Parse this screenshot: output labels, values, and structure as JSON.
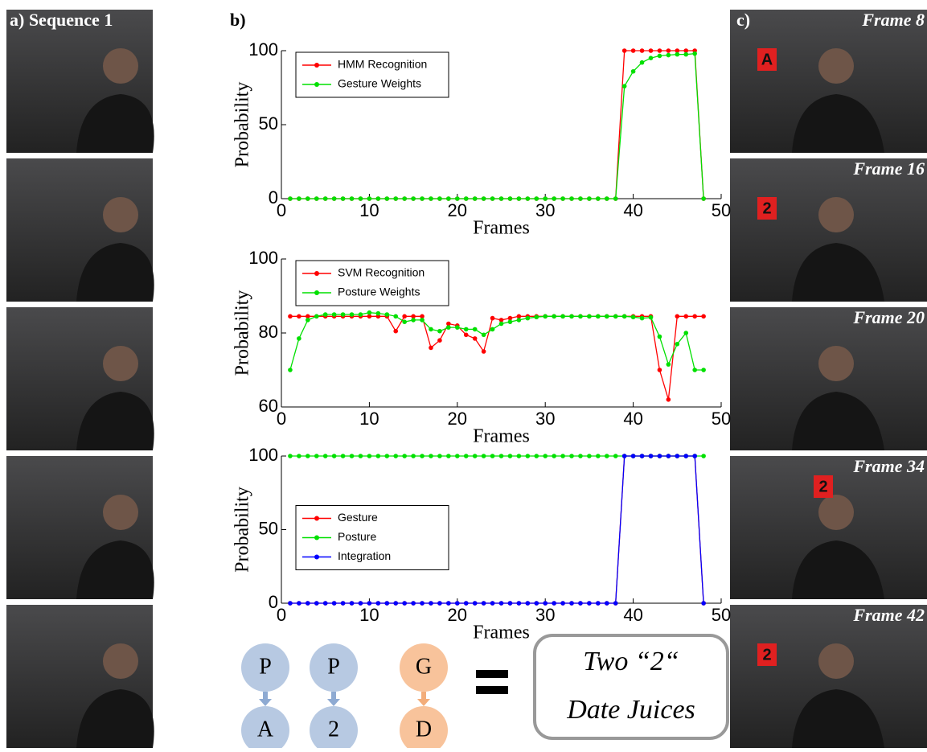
{
  "panel_a": {
    "label": "a) Sequence 1"
  },
  "panel_b": {
    "label": "b)"
  },
  "chart_data": [
    {
      "type": "line",
      "ylabel": "Probability",
      "xlabel": "Frames",
      "legend": "upper left",
      "x": [
        1,
        2,
        3,
        4,
        5,
        6,
        7,
        8,
        9,
        10,
        11,
        12,
        13,
        14,
        15,
        16,
        17,
        18,
        19,
        20,
        21,
        22,
        23,
        24,
        25,
        26,
        27,
        28,
        29,
        30,
        31,
        32,
        33,
        34,
        35,
        36,
        37,
        38,
        39,
        40,
        41,
        42,
        43,
        44,
        45,
        46,
        47,
        48
      ],
      "xlim": [
        0,
        50
      ],
      "xticks": [
        0,
        10,
        20,
        30,
        40,
        50
      ],
      "ylim": [
        0,
        100
      ],
      "yticks": [
        0,
        50,
        100
      ],
      "series": [
        {
          "name": "HMM Recognition",
          "color": "#ff0000",
          "values": [
            0,
            0,
            0,
            0,
            0,
            0,
            0,
            0,
            0,
            0,
            0,
            0,
            0,
            0,
            0,
            0,
            0,
            0,
            0,
            0,
            0,
            0,
            0,
            0,
            0,
            0,
            0,
            0,
            0,
            0,
            0,
            0,
            0,
            0,
            0,
            0,
            0,
            0,
            100,
            100,
            100,
            100,
            100,
            100,
            100,
            100,
            100,
            0
          ]
        },
        {
          "name": "Gesture Weights",
          "color": "#00e000",
          "values": [
            0,
            0,
            0,
            0,
            0,
            0,
            0,
            0,
            0,
            0,
            0,
            0,
            0,
            0,
            0,
            0,
            0,
            0,
            0,
            0,
            0,
            0,
            0,
            0,
            0,
            0,
            0,
            0,
            0,
            0,
            0,
            0,
            0,
            0,
            0,
            0,
            0,
            0,
            76,
            86,
            92,
            95,
            96.5,
            97,
            97.5,
            97.5,
            98,
            0
          ]
        }
      ]
    },
    {
      "type": "line",
      "ylabel": "Probability",
      "xlabel": "Frames",
      "legend": "upper left",
      "x": [
        1,
        2,
        3,
        4,
        5,
        6,
        7,
        8,
        9,
        10,
        11,
        12,
        13,
        14,
        15,
        16,
        17,
        18,
        19,
        20,
        21,
        22,
        23,
        24,
        25,
        26,
        27,
        28,
        29,
        30,
        31,
        32,
        33,
        34,
        35,
        36,
        37,
        38,
        39,
        40,
        41,
        42,
        43,
        44,
        45,
        46,
        47,
        48
      ],
      "xlim": [
        0,
        50
      ],
      "xticks": [
        0,
        10,
        20,
        30,
        40,
        50
      ],
      "ylim": [
        60,
        100
      ],
      "yticks": [
        60,
        80,
        100
      ],
      "series": [
        {
          "name": "SVM Recognition",
          "color": "#ff0000",
          "values": [
            84.5,
            84.5,
            84.5,
            84.5,
            84.5,
            84.5,
            84.5,
            84.5,
            84.5,
            84.5,
            84.5,
            84.5,
            80.5,
            84.5,
            84.5,
            84.5,
            76,
            78,
            82.5,
            82,
            79.5,
            78.5,
            75,
            84,
            83.5,
            84,
            84.5,
            84.5,
            84.5,
            84.5,
            84.5,
            84.5,
            84.5,
            84.5,
            84.5,
            84.5,
            84.5,
            84.5,
            84.5,
            84.5,
            84.5,
            84.5,
            70,
            62,
            84.5,
            84.5,
            84.5,
            84.5
          ]
        },
        {
          "name": "Posture Weights",
          "color": "#00e000",
          "values": [
            70,
            78.5,
            83.5,
            84.5,
            85,
            85,
            85,
            85,
            85,
            85.5,
            85.3,
            85,
            84.5,
            83,
            83.5,
            83.5,
            81,
            80.5,
            81.5,
            81.5,
            81,
            81,
            79.5,
            81,
            82.5,
            83,
            83.5,
            84,
            84.3,
            84.5,
            84.5,
            84.5,
            84.5,
            84.5,
            84.5,
            84.5,
            84.5,
            84.5,
            84.5,
            84.3,
            84,
            84.2,
            79,
            71.5,
            77,
            80,
            70,
            70
          ]
        }
      ]
    },
    {
      "type": "line",
      "ylabel": "Probability",
      "xlabel": "Frames",
      "legend": "center left",
      "x": [
        1,
        2,
        3,
        4,
        5,
        6,
        7,
        8,
        9,
        10,
        11,
        12,
        13,
        14,
        15,
        16,
        17,
        18,
        19,
        20,
        21,
        22,
        23,
        24,
        25,
        26,
        27,
        28,
        29,
        30,
        31,
        32,
        33,
        34,
        35,
        36,
        37,
        38,
        39,
        40,
        41,
        42,
        43,
        44,
        45,
        46,
        47,
        48
      ],
      "xlim": [
        0,
        50
      ],
      "xticks": [
        0,
        10,
        20,
        30,
        40,
        50
      ],
      "ylim": [
        0,
        100
      ],
      "yticks": [
        0,
        50,
        100
      ],
      "series": [
        {
          "name": "Gesture",
          "color": "#ff0000",
          "values": [
            0,
            0,
            0,
            0,
            0,
            0,
            0,
            0,
            0,
            0,
            0,
            0,
            0,
            0,
            0,
            0,
            0,
            0,
            0,
            0,
            0,
            0,
            0,
            0,
            0,
            0,
            0,
            0,
            0,
            0,
            0,
            0,
            0,
            0,
            0,
            0,
            0,
            0,
            100,
            100,
            100,
            100,
            100,
            100,
            100,
            100,
            100,
            0
          ]
        },
        {
          "name": "Posture",
          "color": "#00e000",
          "values": [
            100,
            100,
            100,
            100,
            100,
            100,
            100,
            100,
            100,
            100,
            100,
            100,
            100,
            100,
            100,
            100,
            100,
            100,
            100,
            100,
            100,
            100,
            100,
            100,
            100,
            100,
            100,
            100,
            100,
            100,
            100,
            100,
            100,
            100,
            100,
            100,
            100,
            100,
            100,
            100,
            100,
            100,
            100,
            100,
            100,
            100,
            100,
            100
          ]
        },
        {
          "name": "Integration",
          "color": "#0000ff",
          "values": [
            0,
            0,
            0,
            0,
            0,
            0,
            0,
            0,
            0,
            0,
            0,
            0,
            0,
            0,
            0,
            0,
            0,
            0,
            0,
            0,
            0,
            0,
            0,
            0,
            0,
            0,
            0,
            0,
            0,
            0,
            0,
            0,
            0,
            0,
            0,
            0,
            0,
            0,
            100,
            100,
            100,
            100,
            100,
            100,
            100,
            100,
            100,
            0
          ]
        }
      ]
    }
  ],
  "diagram": {
    "nodes": [
      {
        "top": "P",
        "bottom": "A"
      },
      {
        "top": "P",
        "bottom": "2"
      },
      {
        "top": "G",
        "bottom": "D"
      }
    ],
    "result": [
      "Two “2“",
      "Date Juices"
    ]
  },
  "panel_c": {
    "label": "c)",
    "frames": [
      {
        "title": "Frame 8",
        "sign": "A"
      },
      {
        "title": "Frame 16",
        "sign": "2"
      },
      {
        "title": "Frame 20"
      },
      {
        "title": "Frame 34",
        "sign": "2"
      },
      {
        "title": "Frame 42",
        "sign": "2"
      }
    ]
  }
}
